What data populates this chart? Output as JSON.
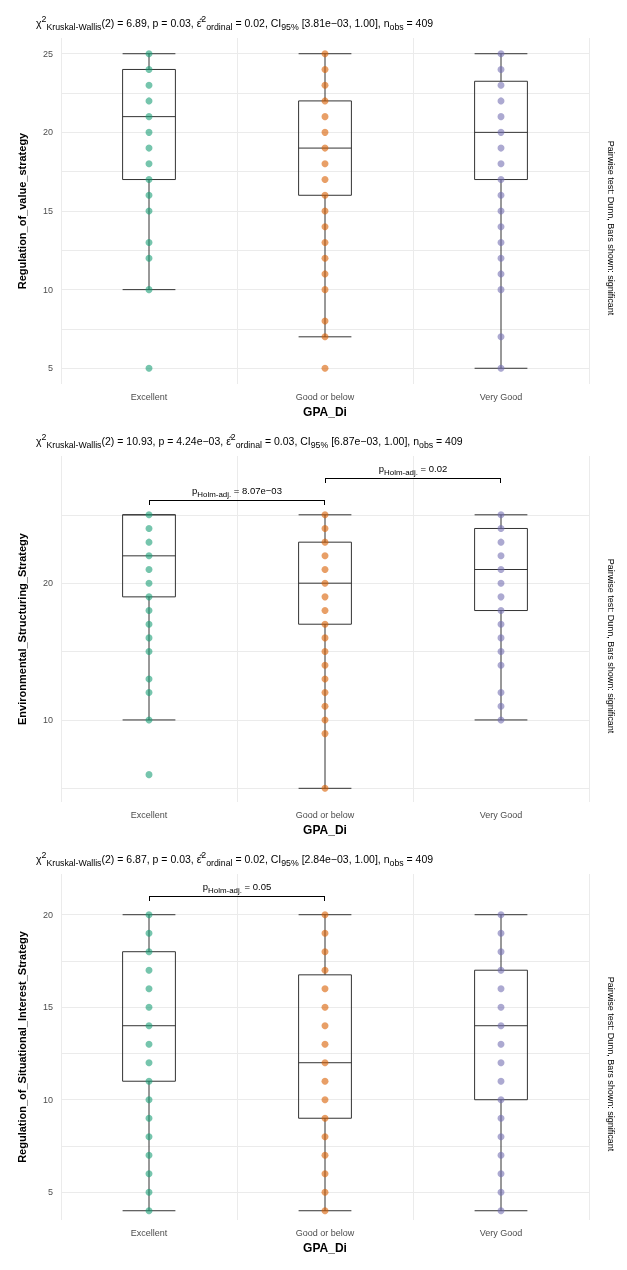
{
  "chart_data": [
    {
      "type": "box",
      "title": "χ$^{2}$$_{Kruskal-Wallis}$(2) = 6.89, p = 0.03, ε̂$^{2}$$_{ordinal}$ = 0.02, CI$_{95%}$ [3.81e−03, 1.00], n$_{obs}$ = 409",
      "xlabel": "GPA_Di",
      "ylabel": "Regulation_of_value_strategy",
      "categories": [
        "Excellent",
        "Good or below",
        "Very Good"
      ],
      "boxes": [
        {
          "low": 10,
          "q1": 17,
          "median": 21,
          "q3": 24,
          "high": 25
        },
        {
          "low": 7,
          "q1": 16,
          "median": 19,
          "q3": 22,
          "high": 25
        },
        {
          "low": 5,
          "q1": 17,
          "median": 20,
          "q3": 23.25,
          "high": 25
        }
      ],
      "series": [
        {
          "type": "scatter",
          "color": "#1b9e77",
          "x": [
            "Excellent",
            "Excellent",
            "Excellent",
            "Excellent",
            "Excellent",
            "Excellent",
            "Excellent",
            "Excellent",
            "Excellent",
            "Excellent",
            "Excellent",
            "Excellent",
            "Excellent",
            "Excellent",
            "Excellent"
          ],
          "values": [
            25,
            24,
            23,
            22,
            21,
            20,
            19,
            18,
            17,
            16,
            15,
            13,
            12,
            10,
            5
          ]
        },
        {
          "type": "scatter",
          "color": "#d95f02",
          "x": [
            "Good or below",
            "Good or below",
            "Good or below",
            "Good or below",
            "Good or below",
            "Good or below",
            "Good or below",
            "Good or below",
            "Good or below",
            "Good or below",
            "Good or below",
            "Good or below",
            "Good or below",
            "Good or below",
            "Good or below",
            "Good or below",
            "Good or below",
            "Good or below",
            "Good or below"
          ],
          "values": [
            25,
            24,
            23,
            22,
            21,
            20,
            19,
            18,
            17,
            16,
            15,
            14,
            13,
            12,
            11,
            10,
            8,
            7,
            5
          ]
        },
        {
          "type": "scatter",
          "color": "#7570b3",
          "x": [
            "Very Good",
            "Very Good",
            "Very Good",
            "Very Good",
            "Very Good",
            "Very Good",
            "Very Good",
            "Very Good",
            "Very Good",
            "Very Good",
            "Very Good",
            "Very Good",
            "Very Good",
            "Very Good",
            "Very Good",
            "Very Good",
            "Very Good",
            "Very Good"
          ],
          "values": [
            25,
            24,
            23,
            22,
            21,
            20,
            19,
            18,
            17,
            16,
            15,
            14,
            13,
            12,
            11,
            10,
            7,
            5
          ]
        }
      ],
      "ylim": [
        4,
        26
      ],
      "yticks": [
        5,
        {
          "value": 7.5,
          "label": null
        },
        10,
        {
          "value": 12.5,
          "label": null
        },
        15,
        {
          "value": 17.5,
          "label": null
        },
        20,
        {
          "value": 22.5,
          "label": null
        },
        25
      ],
      "grid": true,
      "marker": "circle",
      "annotations": [
        "Pairwise test: Dunn, Bars shown: significant"
      ]
    },
    {
      "type": "box",
      "title": "χ$^{2}$$_{Kruskal-Wallis}$(2) = 10.93, p = 4.24e−03, ε̂$^{2}$$_{ordinal}$ = 0.03, CI$_{95%}$ [6.87e−03, 1.00], n$_{obs}$ = 409",
      "xlabel": "GPA_Di",
      "ylabel": "Environmental_Structuring_Strategy",
      "categories": [
        "Excellent",
        "Good or below",
        "Very Good"
      ],
      "boxes": [
        {
          "low": 10,
          "q1": 19,
          "median": 22,
          "q3": 25,
          "high": 25
        },
        {
          "low": 5,
          "q1": 17,
          "median": 20,
          "q3": 23,
          "high": 25
        },
        {
          "low": 10,
          "q1": 18,
          "median": 21,
          "q3": 24,
          "high": 25
        }
      ],
      "series": [
        {
          "type": "scatter",
          "color": "#1b9e77",
          "x": [
            "Excellent",
            "Excellent",
            "Excellent",
            "Excellent",
            "Excellent",
            "Excellent",
            "Excellent",
            "Excellent",
            "Excellent",
            "Excellent",
            "Excellent",
            "Excellent",
            "Excellent",
            "Excellent",
            "Excellent"
          ],
          "values": [
            25,
            24,
            23,
            22,
            21,
            20,
            19,
            18,
            17,
            16,
            15,
            13,
            12,
            10,
            6
          ]
        },
        {
          "type": "scatter",
          "color": "#d95f02",
          "x": [
            "Good or below",
            "Good or below",
            "Good or below",
            "Good or below",
            "Good or below",
            "Good or below",
            "Good or below",
            "Good or below",
            "Good or below",
            "Good or below",
            "Good or below",
            "Good or below",
            "Good or below",
            "Good or below",
            "Good or below",
            "Good or below",
            "Good or below",
            "Good or below"
          ],
          "values": [
            25,
            24,
            23,
            22,
            21,
            20,
            19,
            18,
            17,
            16,
            15,
            14,
            13,
            12,
            11,
            10,
            9,
            5
          ]
        },
        {
          "type": "scatter",
          "color": "#7570b3",
          "x": [
            "Very Good",
            "Very Good",
            "Very Good",
            "Very Good",
            "Very Good",
            "Very Good",
            "Very Good",
            "Very Good",
            "Very Good",
            "Very Good",
            "Very Good",
            "Very Good",
            "Very Good",
            "Very Good",
            "Very Good"
          ],
          "values": [
            25,
            24,
            23,
            22,
            21,
            20,
            19,
            18,
            17,
            16,
            15,
            14,
            12,
            11,
            10
          ]
        }
      ],
      "ylim": [
        4,
        29.3
      ],
      "yticks": [
        {
          "value": 5,
          "label": null
        },
        10,
        {
          "value": 15,
          "label": null
        },
        20,
        {
          "value": 25,
          "label": null
        }
      ],
      "grid": true,
      "marker": "circle",
      "annotations": [
        "p$_{Holm-adj.}$ = 8.07e−03",
        "p$_{Holm-adj.}$ = 0.02",
        "Pairwise test: Dunn, Bars shown: significant"
      ]
    },
    {
      "type": "box",
      "title": "χ$^{2}$$_{Kruskal-Wallis}$(2) = 6.87, p = 0.03, ε̂$^{2}$$_{ordinal}$ = 0.02, CI$_{95%}$ [2.84e−03, 1.00], n$_{obs}$ = 409",
      "xlabel": "GPA_Di",
      "ylabel": "Regulation_of_Situational_Interest_Strategy",
      "categories": [
        "Excellent",
        "Good or below",
        "Very Good"
      ],
      "boxes": [
        {
          "low": 4,
          "q1": 11,
          "median": 14,
          "q3": 18,
          "high": 20
        },
        {
          "low": 4,
          "q1": 9,
          "median": 12,
          "q3": 16.75,
          "high": 20
        },
        {
          "low": 4,
          "q1": 10,
          "median": 14,
          "q3": 17,
          "high": 20
        }
      ],
      "series": [
        {
          "type": "scatter",
          "color": "#1b9e77",
          "x": [
            "Excellent",
            "Excellent",
            "Excellent",
            "Excellent",
            "Excellent",
            "Excellent",
            "Excellent",
            "Excellent",
            "Excellent",
            "Excellent",
            "Excellent",
            "Excellent",
            "Excellent",
            "Excellent",
            "Excellent",
            "Excellent",
            "Excellent"
          ],
          "values": [
            20,
            19,
            18,
            17,
            16,
            15,
            14,
            13,
            12,
            11,
            10,
            9,
            8,
            7,
            6,
            5,
            4
          ]
        },
        {
          "type": "scatter",
          "color": "#d95f02",
          "x": [
            "Good or below",
            "Good or below",
            "Good or below",
            "Good or below",
            "Good or below",
            "Good or below",
            "Good or below",
            "Good or below",
            "Good or below",
            "Good or below",
            "Good or below",
            "Good or below",
            "Good or below",
            "Good or below",
            "Good or below",
            "Good or below",
            "Good or below"
          ],
          "values": [
            20,
            19,
            18,
            17,
            16,
            15,
            14,
            13,
            12,
            11,
            10,
            9,
            8,
            7,
            6,
            5,
            4
          ]
        },
        {
          "type": "scatter",
          "color": "#7570b3",
          "x": [
            "Very Good",
            "Very Good",
            "Very Good",
            "Very Good",
            "Very Good",
            "Very Good",
            "Very Good",
            "Very Good",
            "Very Good",
            "Very Good",
            "Very Good",
            "Very Good",
            "Very Good",
            "Very Good",
            "Very Good",
            "Very Good",
            "Very Good"
          ],
          "values": [
            20,
            19,
            18,
            17,
            16,
            15,
            14,
            13,
            12,
            11,
            10,
            9,
            8,
            7,
            6,
            5,
            4
          ]
        }
      ],
      "ylim": [
        3.5,
        22.2
      ],
      "yticks": [
        5,
        {
          "value": 7.5,
          "label": null
        },
        10,
        {
          "value": 12.5,
          "label": null
        },
        15,
        {
          "value": 17.5,
          "label": null
        },
        20
      ],
      "grid": true,
      "marker": "circle",
      "annotations": [
        "p$_{Holm-adj.}$ = 0.05",
        "Pairwise test: Dunn, Bars shown: significant"
      ]
    }
  ]
}
